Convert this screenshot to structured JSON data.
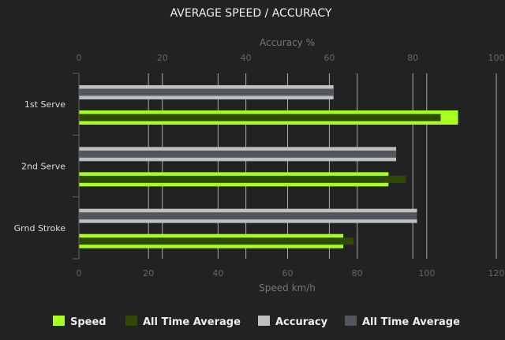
{
  "chart_data": {
    "type": "bar",
    "orientation": "horizontal",
    "title": "AVERAGE SPEED / ACCURACY",
    "categories": [
      "1st Serve",
      "2nd Serve",
      "Grnd Stroke"
    ],
    "speed_axis": {
      "label": "Speed km/h",
      "range": [
        0,
        120
      ],
      "ticks": [
        0,
        20,
        40,
        60,
        80,
        100,
        120
      ],
      "position": "bottom"
    },
    "accuracy_axis": {
      "label": "Accuracy %",
      "range": [
        0,
        100
      ],
      "ticks": [
        0,
        20,
        40,
        60,
        80,
        100
      ],
      "position": "top"
    },
    "series": [
      {
        "name": "Speed",
        "axis": "speed",
        "color": "#a8ff1e",
        "values": [
          109,
          89,
          76
        ]
      },
      {
        "name": "All Time Average",
        "axis": "speed",
        "color": "#2e4a00",
        "values": [
          104,
          94,
          79
        ]
      },
      {
        "name": "Accuracy",
        "axis": "accuracy",
        "color": "#bcc0c3",
        "values": [
          61,
          76,
          81
        ]
      },
      {
        "name": "All Time Average",
        "axis": "accuracy",
        "color": "#52575e",
        "values": [
          61,
          76,
          81
        ]
      }
    ],
    "grid": true,
    "legend": "bottom"
  }
}
